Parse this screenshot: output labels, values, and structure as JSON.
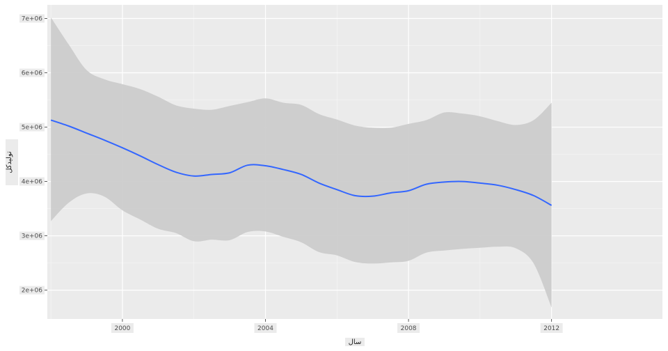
{
  "chart_data": {
    "type": "line",
    "title": "",
    "xlabel": "سال",
    "ylabel": "تولیدکل",
    "xlim": [
      1997.9,
      2015.1
    ],
    "ylim": [
      1470000,
      7250000
    ],
    "x_ticks": [
      {
        "value": 2000,
        "label": "2000"
      },
      {
        "value": 2004,
        "label": "2004"
      },
      {
        "value": 2008,
        "label": "2008"
      },
      {
        "value": 2012,
        "label": "2012"
      }
    ],
    "y_ticks": [
      {
        "value": 2000000,
        "label": "2e+06"
      },
      {
        "value": 3000000,
        "label": "3e+06"
      },
      {
        "value": 4000000,
        "label": "4e+06"
      },
      {
        "value": 5000000,
        "label": "5e+06"
      },
      {
        "value": 6000000,
        "label": "6e+06"
      },
      {
        "value": 7000000,
        "label": "7e+06"
      }
    ],
    "grid": true,
    "series": [
      {
        "color": "#3366ff",
        "band_color": "#cccccc",
        "x": [
          1998,
          1998.5,
          1999,
          1999.5,
          2000,
          2000.5,
          2001,
          2001.5,
          2002,
          2002.5,
          2003,
          2003.5,
          2004,
          2004.5,
          2005,
          2005.5,
          2006,
          2006.5,
          2007,
          2007.5,
          2008,
          2008.5,
          2009,
          2009.5,
          2010,
          2010.5,
          2011,
          2011.5,
          2012
        ],
        "y": [
          5130000,
          5020000,
          4890000,
          4760000,
          4620000,
          4470000,
          4310000,
          4170000,
          4100000,
          4130000,
          4160000,
          4300000,
          4290000,
          4220000,
          4130000,
          3970000,
          3850000,
          3740000,
          3730000,
          3790000,
          3830000,
          3950000,
          3990000,
          4000000,
          3970000,
          3930000,
          3850000,
          3740000,
          3560000
        ],
        "lower": [
          3270000,
          3610000,
          3780000,
          3720000,
          3470000,
          3300000,
          3130000,
          3050000,
          2900000,
          2930000,
          2920000,
          3070000,
          3080000,
          2980000,
          2880000,
          2700000,
          2640000,
          2520000,
          2490000,
          2510000,
          2540000,
          2690000,
          2730000,
          2760000,
          2780000,
          2800000,
          2770000,
          2490000,
          1680000
        ],
        "upper": [
          7020000,
          6520000,
          6050000,
          5880000,
          5790000,
          5700000,
          5560000,
          5400000,
          5340000,
          5320000,
          5390000,
          5460000,
          5530000,
          5450000,
          5410000,
          5240000,
          5140000,
          5030000,
          4990000,
          4990000,
          5060000,
          5130000,
          5270000,
          5250000,
          5200000,
          5110000,
          5040000,
          5130000,
          5450000
        ]
      }
    ]
  }
}
